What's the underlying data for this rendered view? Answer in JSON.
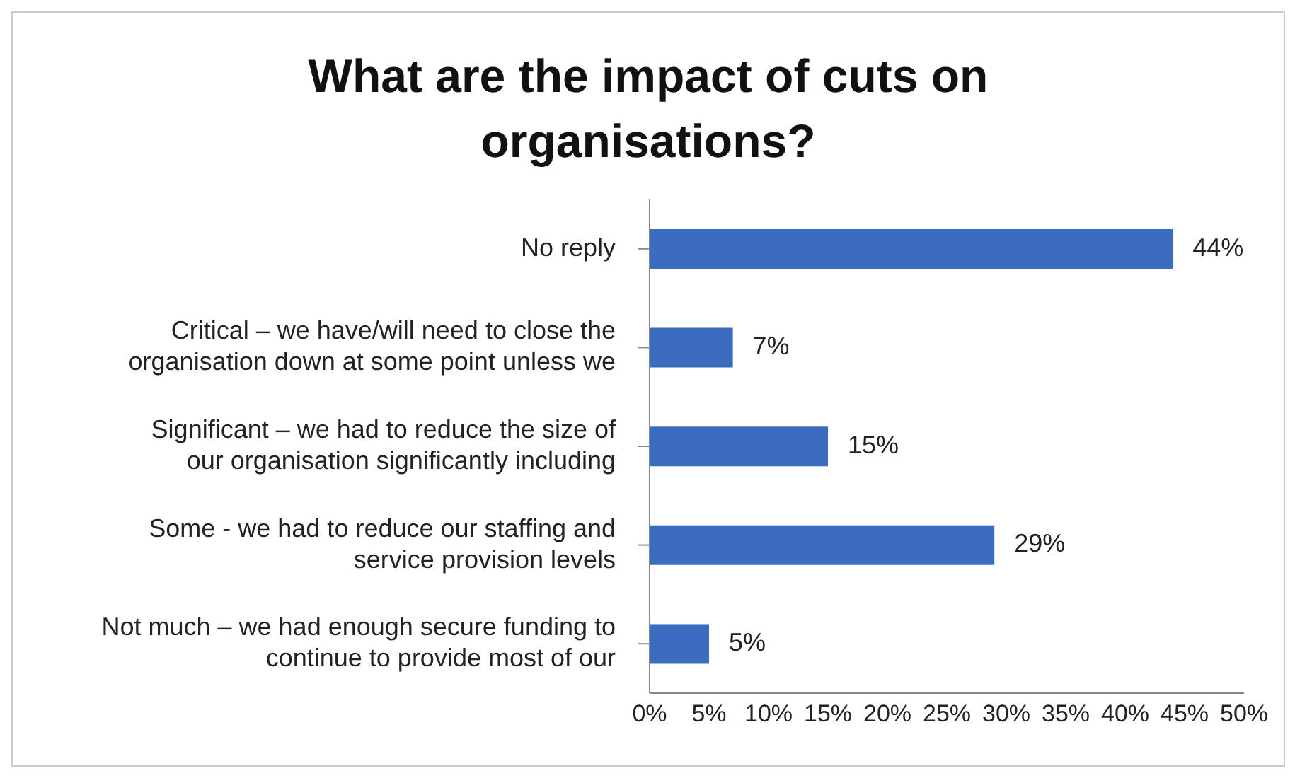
{
  "chart_data": {
    "type": "bar",
    "orientation": "horizontal",
    "title": "What are the impact of cuts on organisations?",
    "categories": [
      "No reply",
      "Critical – we have/will need to close the organisation down at some point unless we",
      "Significant – we had to reduce the size of our organisation significantly including",
      "Some - we had to reduce our staffing and service provision levels",
      "Not much – we had enough secure funding to continue to provide most of our"
    ],
    "values": [
      44,
      7,
      15,
      29,
      5
    ],
    "value_labels": [
      "44%",
      "7%",
      "15%",
      "29%",
      "5%"
    ],
    "color": "#3a6cc0",
    "xlim": [
      0,
      50
    ],
    "xticks": [
      {
        "value": 0,
        "label": "0%"
      },
      {
        "value": 5,
        "label": "5%"
      },
      {
        "value": 10,
        "label": "10%"
      },
      {
        "value": 15,
        "label": "15%"
      },
      {
        "value": 20,
        "label": "20%"
      },
      {
        "value": 25,
        "label": "25%"
      },
      {
        "value": 30,
        "label": "30%"
      },
      {
        "value": 35,
        "label": "35%"
      },
      {
        "value": 40,
        "label": "40%"
      },
      {
        "value": 45,
        "label": "45%"
      },
      {
        "value": 50,
        "label": "50%"
      }
    ]
  }
}
